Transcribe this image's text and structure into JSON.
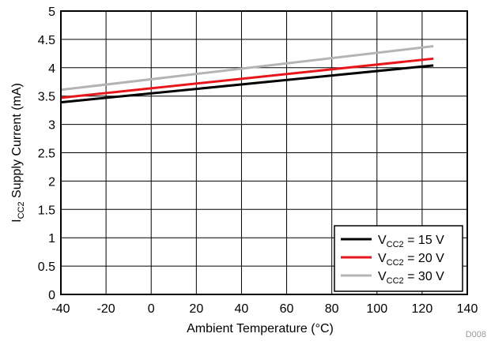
{
  "chart_data": {
    "type": "line",
    "xlabel": "Ambient Temperature (°C)",
    "ylabel": {
      "main": "I",
      "sub": "CC2",
      "rest": " Supply Current (mA)"
    },
    "xlim": [
      -40,
      140
    ],
    "ylim": [
      0,
      5
    ],
    "xticks": [
      -40,
      -20,
      0,
      20,
      40,
      60,
      80,
      100,
      120,
      140
    ],
    "yticks": [
      0,
      0.5,
      1,
      1.5,
      2,
      2.5,
      3,
      3.5,
      4,
      4.5,
      5
    ],
    "grid": true,
    "legend_position": "bottom-right",
    "figure_id": "D008",
    "series": [
      {
        "name": {
          "main": "V",
          "sub": "CC2",
          "rest": " = 15 V"
        },
        "color": "#000000",
        "x": [
          -40,
          125
        ],
        "y": [
          3.39,
          4.04
        ]
      },
      {
        "name": {
          "main": "V",
          "sub": "CC2",
          "rest": " = 20 V"
        },
        "color": "#e8161b",
        "x": [
          -40,
          125
        ],
        "y": [
          3.47,
          4.16
        ]
      },
      {
        "name": {
          "main": "V",
          "sub": "CC2",
          "rest": " = 30 V"
        },
        "color": "#b4b4b4",
        "x": [
          -40,
          125
        ],
        "y": [
          3.61,
          4.38
        ]
      }
    ]
  }
}
